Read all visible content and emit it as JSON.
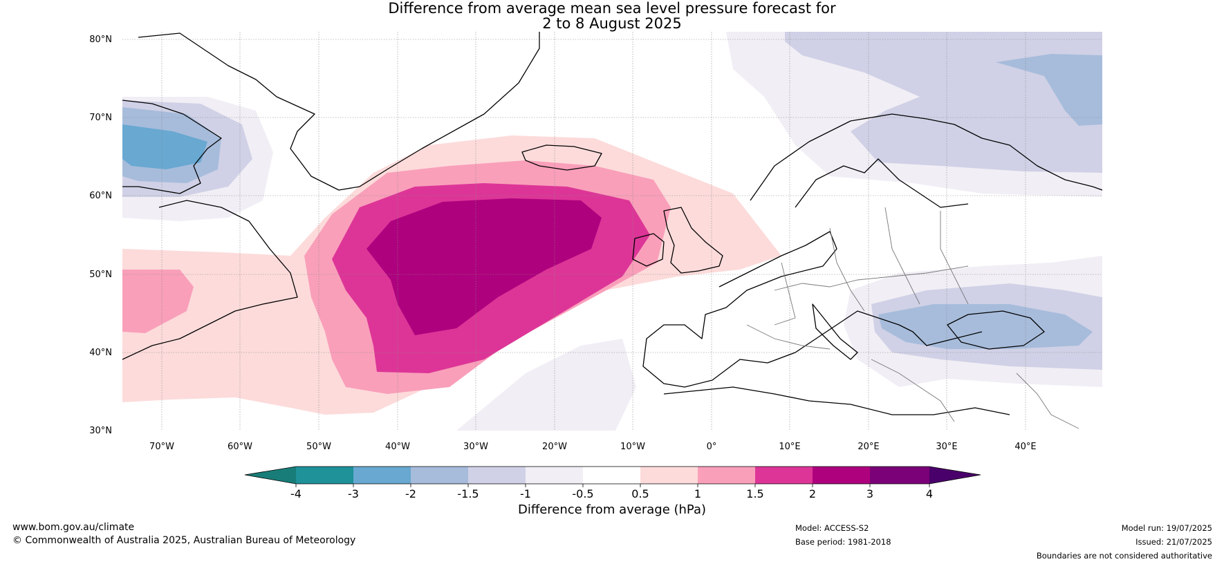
{
  "title": {
    "line1": "Difference from average mean sea level pressure forecast for",
    "line2": "2 to 8 August 2025"
  },
  "lat_labels": [
    "80°N",
    "70°N",
    "60°N",
    "50°N",
    "40°N",
    "30°N"
  ],
  "lon_labels": [
    "70°W",
    "60°W",
    "50°W",
    "40°W",
    "30°W",
    "20°W",
    "10°W",
    "0°",
    "10°E",
    "20°E",
    "30°E",
    "40°E"
  ],
  "colorbar": {
    "label": "Difference from average (hPa)",
    "ticks": [
      "-4",
      "-3",
      "-2",
      "-1.5",
      "-1",
      "-0.5",
      "0.5",
      "1",
      "1.5",
      "2",
      "3",
      "4"
    ],
    "colors": [
      "#187d78",
      "#1e9199",
      "#68a8d1",
      "#a7bcdb",
      "#d0d1e6",
      "#f1eef5",
      "#ffffff",
      "#fddbdb",
      "#f99fba",
      "#dd3597",
      "#ae017e",
      "#7a0177",
      "#49006a"
    ]
  },
  "footer": {
    "url": "www.bom.gov.au/climate",
    "copyright": "© Commonwealth of Australia 2025, Australian Bureau of Meteorology",
    "model": "Model: ACCESS-S2",
    "base_period": "Base period: 1981-2018",
    "model_run": "Model run: 19/07/2025",
    "issued": "Issued: 21/07/2025",
    "disclaimer": "Boundaries are not considered authoritative"
  }
}
